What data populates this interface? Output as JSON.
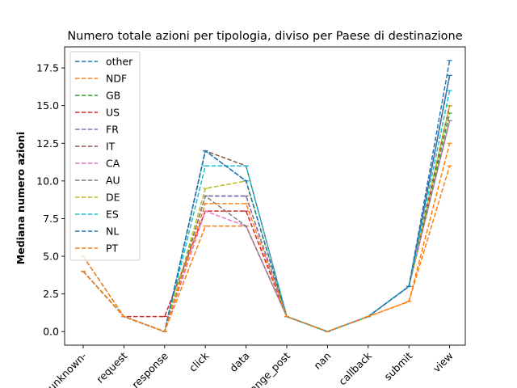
{
  "chart_data": {
    "type": "line",
    "title": "Numero totale azioni per tipologia, diviso per Paese di destinazione",
    "xlabel": "",
    "ylabel": "Mediana numero azioni",
    "categories": [
      "-unknown-",
      "request",
      "response",
      "click",
      "data",
      "change_post",
      "nan",
      "callback",
      "submit",
      "view"
    ],
    "ylim": [
      -0.9,
      18.9
    ],
    "yticks": [
      0.0,
      2.5,
      5.0,
      7.5,
      10.0,
      12.5,
      15.0,
      17.5
    ],
    "ytick_labels": [
      "0.0",
      "2.5",
      "5.0",
      "7.5",
      "10.0",
      "12.5",
      "15.0",
      "17.5"
    ],
    "grid": false,
    "legend_position": "upper-left",
    "series": [
      {
        "name": "other",
        "color": "#1f77b4",
        "values": [
          5,
          1,
          0,
          12,
          10,
          1,
          0,
          1,
          3,
          18
        ]
      },
      {
        "name": "NDF",
        "color": "#ff7f0e",
        "values": [
          5,
          1,
          0,
          7,
          7,
          1,
          0,
          1,
          2,
          11
        ]
      },
      {
        "name": "GB",
        "color": "#2ca02c",
        "values": [
          4,
          1,
          0,
          9,
          9,
          1,
          0,
          1,
          3,
          14.5
        ]
      },
      {
        "name": "US",
        "color": "#d62728",
        "values": [
          4,
          1,
          1,
          8,
          8,
          1,
          0,
          1,
          3,
          15
        ]
      },
      {
        "name": "FR",
        "color": "#9467bd",
        "values": [
          4,
          1,
          0,
          9,
          9,
          1,
          0,
          1,
          3,
          17
        ]
      },
      {
        "name": "IT",
        "color": "#8c564b",
        "values": [
          4,
          1,
          0,
          12,
          11,
          1,
          0,
          1,
          3,
          17
        ]
      },
      {
        "name": "CA",
        "color": "#e377c2",
        "values": [
          4,
          1,
          0,
          8,
          7,
          1,
          0,
          1,
          3,
          14
        ]
      },
      {
        "name": "AU",
        "color": "#7f7f7f",
        "values": [
          4,
          1,
          0,
          9,
          7,
          1,
          0,
          1,
          3,
          14
        ]
      },
      {
        "name": "DE",
        "color": "#bcbd22",
        "values": [
          4,
          1,
          0,
          9.5,
          10,
          1,
          0,
          1,
          3,
          15
        ]
      },
      {
        "name": "ES",
        "color": "#17becf",
        "values": [
          4,
          1,
          0,
          11,
          11,
          1,
          0,
          1,
          3,
          16
        ]
      },
      {
        "name": "NL",
        "color": "#1f77b4",
        "values": [
          4,
          1,
          0,
          12,
          10,
          1,
          0,
          1,
          3,
          17
        ]
      },
      {
        "name": "PT",
        "color": "#ff7f0e",
        "values": [
          4,
          1,
          0,
          8.5,
          8.5,
          1,
          0,
          1,
          2,
          12.5
        ]
      }
    ]
  }
}
